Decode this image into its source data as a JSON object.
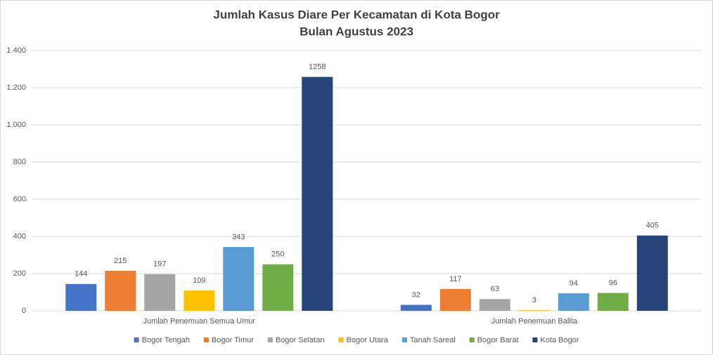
{
  "chart_data": {
    "type": "bar",
    "title": "Jumlah Kasus Diare Per Kecamatan di Kota Bogor",
    "subtitle": "Bulan Agustus 2023",
    "categories": [
      "Jumlah Penemuan Semua Umur",
      "Jumlah Penemuan Balita"
    ],
    "series": [
      {
        "name": "Bogor Tengah",
        "color": "#4472c4",
        "values": [
          144,
          32
        ]
      },
      {
        "name": "Bogor Timur",
        "color": "#ed7d31",
        "values": [
          215,
          117
        ]
      },
      {
        "name": "Bogor Selatan",
        "color": "#a5a5a5",
        "values": [
          197,
          63
        ]
      },
      {
        "name": "Bogor Utara",
        "color": "#ffc000",
        "values": [
          109,
          3
        ]
      },
      {
        "name": "Tanah Sareal",
        "color": "#5b9bd5",
        "values": [
          343,
          94
        ]
      },
      {
        "name": "Bogor Barat",
        "color": "#70ad47",
        "values": [
          250,
          96
        ]
      },
      {
        "name": "Kota Bogor",
        "color": "#264478",
        "values": [
          1258,
          405
        ]
      }
    ],
    "ylim": [
      0,
      1400
    ],
    "yticks": [
      0,
      200,
      400,
      600,
      800,
      {
        "value": 1000,
        "label": "1.000"
      },
      {
        "value": 1200,
        "label": "1.200"
      },
      {
        "value": 1400,
        "label": "1.400"
      }
    ],
    "grid": true,
    "legend": "bottom"
  }
}
